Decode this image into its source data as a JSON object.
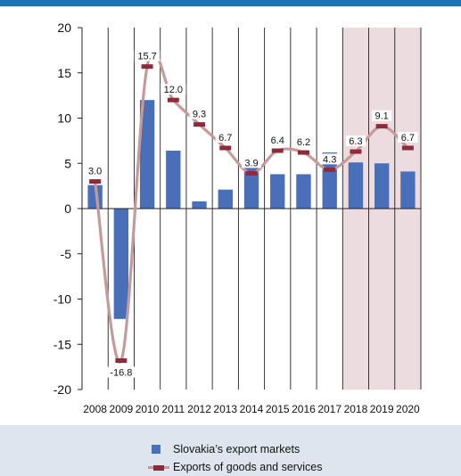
{
  "chart_data": {
    "type": "bar",
    "categories": [
      "2008",
      "2009",
      "2010",
      "2011",
      "2012",
      "2013",
      "2014",
      "2015",
      "2016",
      "2017",
      "2018",
      "2019",
      "2020"
    ],
    "series": [
      {
        "name": "Slovakia's export markets",
        "type": "bar",
        "values": [
          2.6,
          -12.2,
          12.0,
          6.4,
          0.8,
          2.1,
          5.0,
          3.8,
          3.8,
          6.2,
          5.1,
          5.0,
          4.1
        ]
      },
      {
        "name": "Exports of goods and services",
        "type": "line",
        "values": [
          3.0,
          -16.8,
          15.7,
          12.0,
          9.3,
          6.7,
          3.9,
          6.4,
          6.2,
          4.3,
          6.3,
          9.1,
          6.7
        ],
        "labels": [
          "3.0",
          "-16.8",
          "15.7",
          "12.0",
          "9.3",
          "6.7",
          "3.9",
          "6.4",
          "6.2",
          "4.3",
          "6.3",
          "9.1",
          "6.7"
        ]
      }
    ],
    "yticks": [
      "20",
      "15",
      "10",
      "5",
      "0",
      "-5",
      "-10",
      "-15",
      "-20"
    ],
    "ylim": [
      -20,
      20
    ],
    "shaded_categories": [
      "2018",
      "2019",
      "2020"
    ],
    "grid": "vertical",
    "colors": {
      "bars": "#4a6fb9",
      "line": "#c79a9a",
      "markers": "#8e2a3a",
      "forecast_shade": "#ecdcdf"
    }
  },
  "legend": {
    "bar_label": "Slovakia’s export markets",
    "line_label": "Exports of goods and services"
  }
}
